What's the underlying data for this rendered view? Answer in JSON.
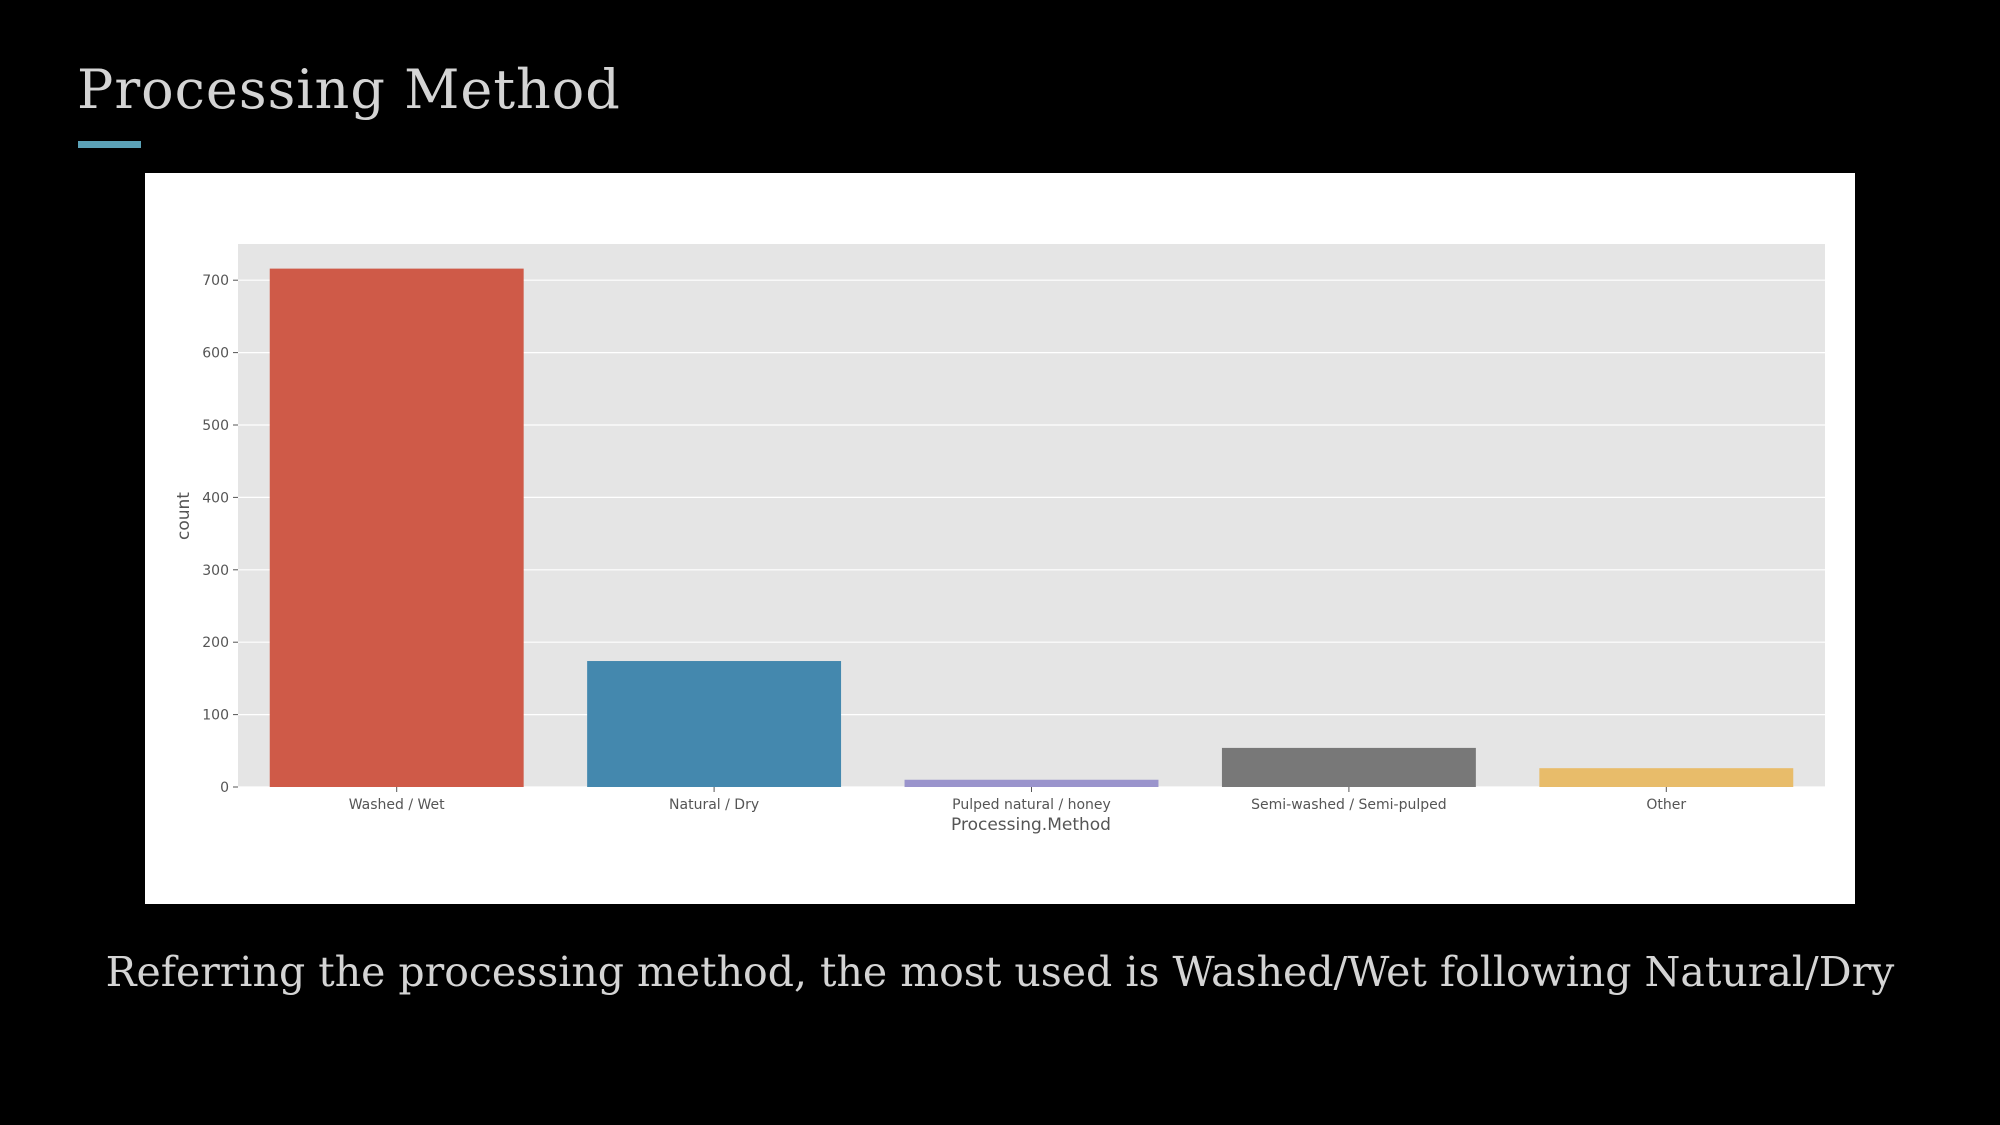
{
  "slide": {
    "title": "Processing Method",
    "caption": "Referring the processing method, the most used is Washed/Wet following Natural/Dry",
    "accent_color": "#5ba2b7"
  },
  "chart_data": {
    "type": "bar",
    "title": "",
    "xlabel": "Processing.Method",
    "ylabel": "count",
    "categories": [
      "Washed / Wet",
      "Natural / Dry",
      "Pulped natural / honey",
      "Semi-washed / Semi-pulped",
      "Other"
    ],
    "values": [
      716,
      174,
      10,
      54,
      26
    ],
    "colors": [
      "#cf5a48",
      "#4488ae",
      "#9a94cc",
      "#787878",
      "#e8bc6a"
    ],
    "ylim": [
      0,
      750
    ],
    "yticks": [
      0,
      100,
      200,
      300,
      400,
      500,
      600,
      700
    ],
    "grid": true,
    "plot_background": "#e5e5e5",
    "legend": "none"
  }
}
